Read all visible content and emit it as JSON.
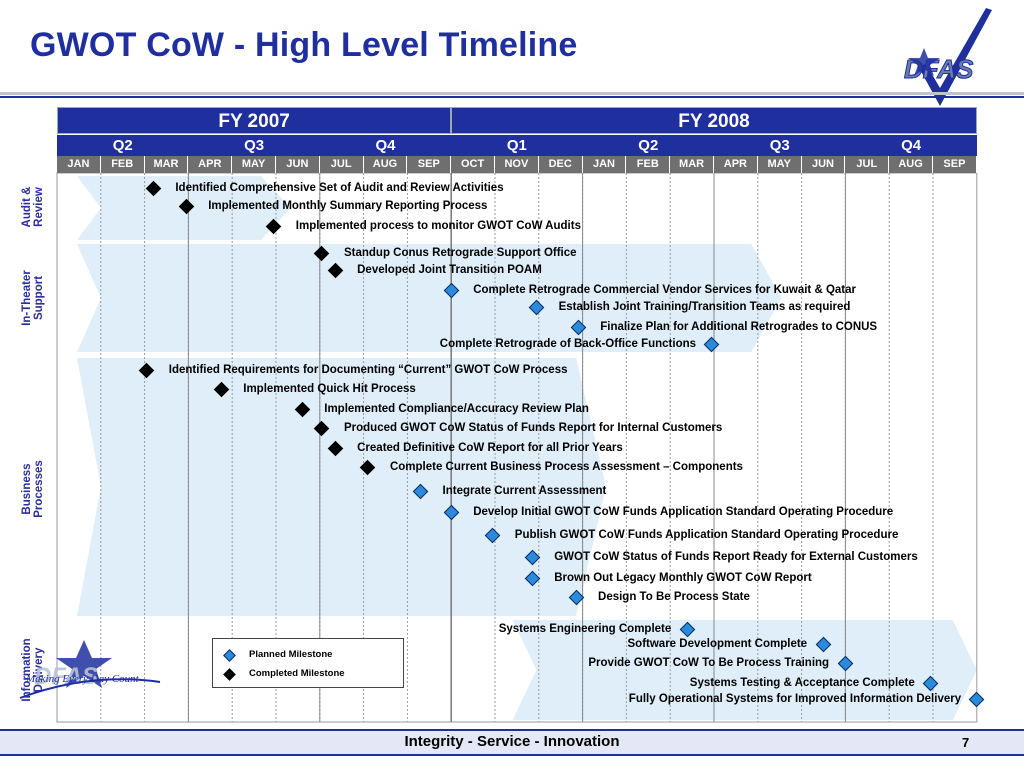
{
  "title": "GWOT CoW - High Level Timeline",
  "logo": "DFAS",
  "fiscal_years": [
    "FY 2007",
    "FY 2008"
  ],
  "quarters": [
    "Q2",
    "Q3",
    "Q4",
    "Q1",
    "Q2",
    "Q3",
    "Q4"
  ],
  "months": [
    "JAN",
    "FEB",
    "MAR",
    "APR",
    "MAY",
    "JUN",
    "JUL",
    "AUG",
    "SEP",
    "OCT",
    "NOV",
    "DEC",
    "JAN",
    "FEB",
    "MAR",
    "APR",
    "MAY",
    "JUN",
    "JUL",
    "AUG",
    "SEP"
  ],
  "sections": [
    {
      "label_line1": "Audit &",
      "label_line2": "Review"
    },
    {
      "label_line1": "In-Theater",
      "label_line2": "Support"
    },
    {
      "label_line1": "Business",
      "label_line2": "Processes"
    },
    {
      "label_line1": "Information",
      "label_line2": "Delivery"
    }
  ],
  "milestones": [
    {
      "label": "Identified Comprehensive Set of Audit and Review Activities",
      "status": "completed",
      "month_pos": 2.2
    },
    {
      "label": "Implemented Monthly Summary Reporting Process",
      "status": "completed",
      "month_pos": 2.95
    },
    {
      "label": "Implemented process to monitor GWOT CoW Audits",
      "status": "completed",
      "month_pos": 4.95
    },
    {
      "label": "Standup Conus Retrograde Support Office",
      "status": "completed",
      "month_pos": 6.05
    },
    {
      "label": "Developed Joint Transition POAM",
      "status": "completed",
      "month_pos": 6.35
    },
    {
      "label": "Complete Retrograde Commercial Vendor Services for Kuwait & Qatar",
      "status": "planned",
      "month_pos": 9.0
    },
    {
      "label": "Establish Joint Training/Transition Teams as required",
      "status": "planned",
      "month_pos": 10.95
    },
    {
      "label": "Finalize Plan for Additional Retrogrades to CONUS",
      "status": "planned",
      "month_pos": 11.9
    },
    {
      "label": "Complete Retrograde of Back-Office Functions",
      "status": "planned",
      "month_pos": 14.95
    },
    {
      "label": "Identified Requirements for Documenting “Current” GWOT CoW Process",
      "status": "completed",
      "month_pos": 2.05
    },
    {
      "label": "Implemented Quick Hit Process",
      "status": "completed",
      "month_pos": 3.75
    },
    {
      "label": "Implemented Compliance/Accuracy Review Plan",
      "status": "completed",
      "month_pos": 5.6
    },
    {
      "label": "Produced GWOT CoW Status of Funds Report for Internal Customers",
      "status": "completed",
      "month_pos": 6.05
    },
    {
      "label": "Created Definitive CoW Report for all Prior Years",
      "status": "completed",
      "month_pos": 6.35
    },
    {
      "label": "Complete Current Business Process Assessment – Components",
      "status": "completed",
      "month_pos": 7.1
    },
    {
      "label": "Integrate Current Assessment",
      "status": "planned",
      "month_pos": 8.3
    },
    {
      "label": "Develop Initial GWOT CoW Funds Application Standard Operating Procedure",
      "status": "planned",
      "month_pos": 9.0
    },
    {
      "label": "Publish GWOT CoW Funds Application Standard Operating Procedure",
      "status": "planned",
      "month_pos": 9.95
    },
    {
      "label": "GWOT CoW Status of Funds Report Ready for External Customers",
      "status": "planned",
      "month_pos": 10.85
    },
    {
      "label": "Brown Out Legacy Monthly GWOT CoW Report",
      "status": "planned",
      "month_pos": 10.85
    },
    {
      "label": "Design To Be Process State",
      "status": "planned",
      "month_pos": 11.85
    },
    {
      "label": "Systems Engineering Complete",
      "status": "planned",
      "month_pos": 14.4
    },
    {
      "label": "Software Development Complete",
      "status": "planned",
      "month_pos": 17.5
    },
    {
      "label": "Provide GWOT CoW To Be Process Training",
      "status": "planned",
      "month_pos": 18.0
    },
    {
      "label": "Systems Testing & Acceptance Complete",
      "status": "planned",
      "month_pos": 19.95
    },
    {
      "label": "Fully Operational Systems for Improved Information Delivery",
      "status": "planned",
      "month_pos": 21.0
    }
  ],
  "legend": {
    "planned": "Planned Milestone",
    "completed": "Completed Milestone"
  },
  "mission_logo_text": "Making Every Day Count",
  "footer": "Integrity - Service - Innovation",
  "page_number": "7",
  "colors": {
    "title": "#1f2f9e",
    "header": "#1f2f9e",
    "month_bar": "#6f6f6f",
    "arrow": "#dbecf8",
    "planned": "#2b8ad9",
    "completed": "#000000",
    "section_label": "#2b2f9a"
  }
}
